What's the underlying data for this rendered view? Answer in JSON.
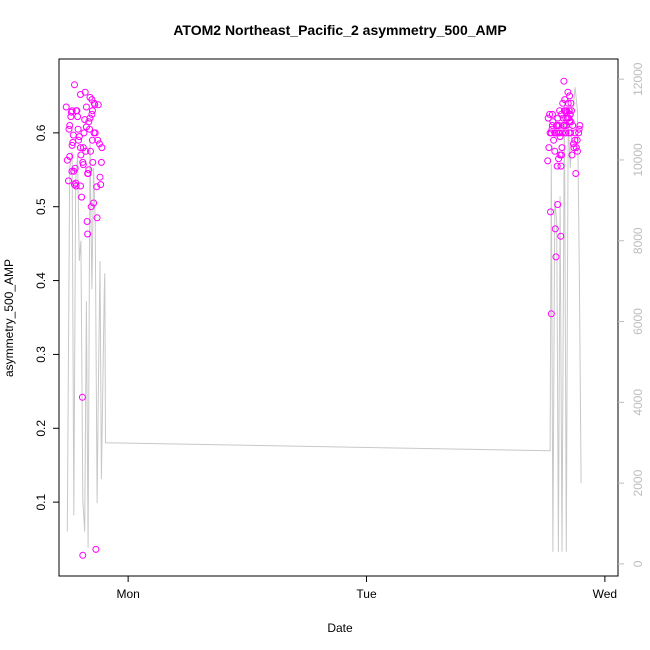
{
  "chart_data": {
    "type": "scatter",
    "title": "ATOM2 Northeast_Pacific_2 asymmetry_500_AMP",
    "xlabel": "Date",
    "ylabel": "asymmetry_500_AMP",
    "x_ticks": [
      "Mon",
      "Tue",
      "Wed"
    ],
    "x_range": [
      -0.29,
      2.055
    ],
    "y_ticks": [
      "0.1",
      "0.2",
      "0.3",
      "0.4",
      "0.5",
      "0.6"
    ],
    "ylim": [
      0.0,
      0.7
    ],
    "y2_ticks": [
      "0",
      "2000",
      "4000",
      "6000",
      "8000",
      "10000",
      "12000"
    ],
    "y2lim": [
      -300,
      12500
    ],
    "grid": false,
    "series": [
      {
        "kind": "scatter",
        "axis": "left",
        "color": "#ff00ff",
        "marker": "open-circle",
        "points": [
          [
            -0.26,
            0.635
          ],
          [
            -0.255,
            0.563
          ],
          [
            -0.25,
            0.535
          ],
          [
            -0.248,
            0.605
          ],
          [
            -0.245,
            0.61
          ],
          [
            -0.24,
            0.622
          ],
          [
            -0.238,
            0.628
          ],
          [
            -0.235,
            0.63
          ],
          [
            -0.232,
            0.587
          ],
          [
            -0.23,
            0.597
          ],
          [
            -0.228,
            0.548
          ],
          [
            -0.225,
            0.665
          ],
          [
            -0.222,
            0.552
          ],
          [
            -0.22,
            0.532
          ],
          [
            -0.218,
            0.528
          ],
          [
            -0.215,
            0.63
          ],
          [
            -0.212,
            0.622
          ],
          [
            -0.21,
            0.605
          ],
          [
            -0.208,
            0.59
          ],
          [
            -0.205,
            0.595
          ],
          [
            -0.2,
            0.652
          ],
          [
            -0.198,
            0.57
          ],
          [
            -0.195,
            0.513
          ],
          [
            -0.192,
            0.242
          ],
          [
            -0.19,
            0.028
          ],
          [
            -0.188,
            0.58
          ],
          [
            -0.185,
            0.6
          ],
          [
            -0.182,
            0.618
          ],
          [
            -0.18,
            0.655
          ],
          [
            -0.178,
            0.575
          ],
          [
            -0.175,
            0.635
          ],
          [
            -0.172,
            0.48
          ],
          [
            -0.17,
            0.463
          ],
          [
            -0.168,
            0.545
          ],
          [
            -0.165,
            0.55
          ],
          [
            -0.162,
            0.605
          ],
          [
            -0.16,
            0.62
          ],
          [
            -0.158,
            0.575
          ],
          [
            -0.155,
            0.5
          ],
          [
            -0.152,
            0.645
          ],
          [
            -0.15,
            0.63
          ],
          [
            -0.148,
            0.56
          ],
          [
            -0.145,
            0.505
          ],
          [
            -0.142,
            0.64
          ],
          [
            -0.14,
            0.638
          ],
          [
            -0.138,
            0.6
          ],
          [
            -0.135,
            0.036
          ],
          [
            -0.132,
            0.527
          ],
          [
            -0.13,
            0.485
          ],
          [
            -0.128,
            0.59
          ],
          [
            -0.125,
            0.638
          ],
          [
            -0.12,
            0.585
          ],
          [
            -0.118,
            0.54
          ],
          [
            -0.115,
            0.53
          ],
          [
            -0.112,
            0.56
          ],
          [
            -0.11,
            0.58
          ],
          [
            -0.245,
            0.568
          ],
          [
            -0.236,
            0.548
          ],
          [
            -0.218,
            0.63
          ],
          [
            -0.2,
            0.58
          ],
          [
            -0.188,
            0.557
          ],
          [
            -0.175,
            0.608
          ],
          [
            -0.165,
            0.615
          ],
          [
            -0.16,
            0.648
          ],
          [
            -0.15,
            0.59
          ],
          [
            -0.143,
            0.6
          ],
          [
            -0.235,
            0.583
          ],
          [
            -0.225,
            0.53
          ],
          [
            -0.2,
            0.528
          ],
          [
            -0.19,
            0.56
          ],
          [
            -0.17,
            0.545
          ],
          [
            -0.152,
            0.625
          ],
          [
            1.76,
            0.562
          ],
          [
            1.765,
            0.58
          ],
          [
            1.77,
            0.6
          ],
          [
            1.772,
            0.493
          ],
          [
            1.775,
            0.355
          ],
          [
            1.778,
            0.605
          ],
          [
            1.78,
            0.625
          ],
          [
            1.785,
            0.59
          ],
          [
            1.79,
            0.575
          ],
          [
            1.792,
            0.47
          ],
          [
            1.795,
            0.432
          ],
          [
            1.8,
            0.555
          ],
          [
            1.802,
            0.503
          ],
          [
            1.805,
            0.6
          ],
          [
            1.808,
            0.61
          ],
          [
            1.81,
            0.6
          ],
          [
            1.812,
            0.57
          ],
          [
            1.815,
            0.46
          ],
          [
            1.818,
            0.57
          ],
          [
            1.82,
            0.58
          ],
          [
            1.822,
            0.6
          ],
          [
            1.825,
            0.62
          ],
          [
            1.828,
            0.67
          ],
          [
            1.83,
            0.63
          ],
          [
            1.832,
            0.645
          ],
          [
            1.835,
            0.6
          ],
          [
            1.838,
            0.61
          ],
          [
            1.84,
            0.63
          ],
          [
            1.842,
            0.628
          ],
          [
            1.845,
            0.655
          ],
          [
            1.848,
            0.62
          ],
          [
            1.85,
            0.6
          ],
          [
            1.852,
            0.615
          ],
          [
            1.855,
            0.625
          ],
          [
            1.858,
            0.64
          ],
          [
            1.86,
            0.63
          ],
          [
            1.865,
            0.61
          ],
          [
            1.87,
            0.58
          ],
          [
            1.875,
            0.6
          ],
          [
            1.878,
            0.545
          ],
          [
            1.88,
            0.58
          ],
          [
            1.885,
            0.575
          ],
          [
            1.89,
            0.6
          ],
          [
            1.892,
            0.605
          ],
          [
            1.895,
            0.61
          ],
          [
            1.762,
            0.62
          ],
          [
            1.768,
            0.625
          ],
          [
            1.775,
            0.6
          ],
          [
            1.782,
            0.615
          ],
          [
            1.79,
            0.6
          ],
          [
            1.797,
            0.61
          ],
          [
            1.803,
            0.62
          ],
          [
            1.81,
            0.63
          ],
          [
            1.817,
            0.625
          ],
          [
            1.823,
            0.64
          ],
          [
            1.83,
            0.61
          ],
          [
            1.837,
            0.6
          ],
          [
            1.843,
            0.62
          ],
          [
            1.85,
            0.63
          ],
          [
            1.856,
            0.6
          ],
          [
            1.862,
            0.57
          ],
          [
            1.868,
            0.585
          ],
          [
            1.874,
            0.59
          ],
          [
            1.78,
            0.61
          ],
          [
            1.79,
            0.6
          ],
          [
            1.8,
            0.61
          ],
          [
            1.806,
            0.565
          ],
          [
            1.816,
            0.555
          ],
          [
            1.826,
            0.61
          ],
          [
            1.836,
            0.62
          ],
          [
            1.846,
            0.64
          ],
          [
            1.852,
            0.65
          ],
          [
            1.798,
            0.6
          ],
          [
            1.812,
            0.595
          ],
          [
            1.834,
            0.63
          ],
          [
            1.858,
            0.615
          ],
          [
            1.884,
            0.59
          ]
        ]
      },
      {
        "kind": "line",
        "axis": "right",
        "color": "#c8c8c8",
        "points": [
          [
            -0.255,
            800
          ],
          [
            -0.245,
            9800
          ],
          [
            -0.235,
            10200
          ],
          [
            -0.228,
            1200
          ],
          [
            -0.22,
            9500
          ],
          [
            -0.212,
            10100
          ],
          [
            -0.205,
            7500
          ],
          [
            -0.198,
            8000
          ],
          [
            -0.19,
            1600
          ],
          [
            -0.182,
            800
          ],
          [
            -0.175,
            6500
          ],
          [
            -0.168,
            400
          ],
          [
            -0.16,
            10500
          ],
          [
            -0.152,
            6800
          ],
          [
            -0.145,
            9800
          ],
          [
            -0.138,
            8500
          ],
          [
            -0.13,
            1500
          ],
          [
            -0.125,
            4200
          ],
          [
            -0.118,
            7500
          ],
          [
            -0.112,
            2100
          ],
          [
            -0.1,
            6800
          ],
          [
            -0.098,
            7200
          ],
          [
            -0.095,
            3000
          ],
          [
            1.77,
            2800
          ],
          [
            1.775,
            9900
          ],
          [
            1.782,
            300
          ],
          [
            1.79,
            9000
          ],
          [
            1.798,
            8500
          ],
          [
            1.805,
            300
          ],
          [
            1.812,
            9100
          ],
          [
            1.82,
            300
          ],
          [
            1.83,
            11500
          ],
          [
            1.838,
            300
          ],
          [
            1.846,
            11000
          ],
          [
            1.855,
            9800
          ],
          [
            1.865,
            11200
          ],
          [
            1.875,
            11800
          ],
          [
            1.885,
            11200
          ],
          [
            1.893,
            7000
          ],
          [
            1.9,
            2000
          ]
        ]
      }
    ]
  }
}
